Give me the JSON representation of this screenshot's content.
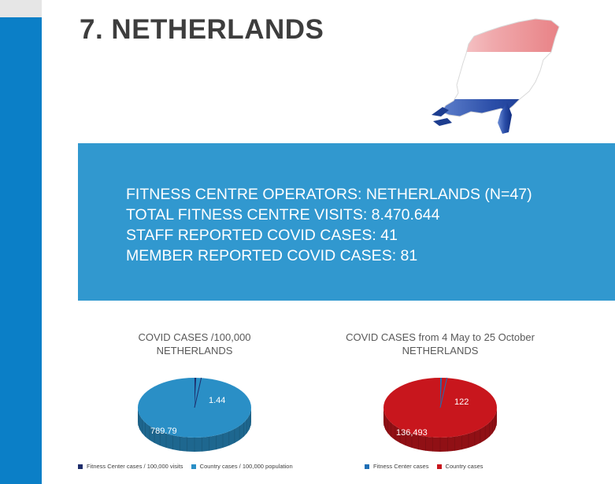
{
  "page": {
    "title": "7. NETHERLANDS"
  },
  "flag_map": {
    "icon": "netherlands-flag-map-icon",
    "colors": [
      "#ee9ca0",
      "#ffffff",
      "#1d3d8f"
    ]
  },
  "info": {
    "lines": [
      "FITNESS CENTRE OPERATORS: NETHERLANDS (N=47)",
      "TOTAL FITNESS CENTRE VISITS: 8.470.644",
      "STAFF REPORTED COVID CASES: 41",
      "MEMBER REPORTED COVID CASES: 81"
    ],
    "background": "#3198cf"
  },
  "chart_data": [
    {
      "type": "pie",
      "title_lines": [
        "COVID CASES /100,000",
        "NETHERLANDS"
      ],
      "labels": [
        "Fitness Center cases / 100,000 visits",
        "Country cases / 100,000 population"
      ],
      "values": [
        1.44,
        789.79
      ],
      "data_labels": [
        "1.44",
        "789.79"
      ],
      "colors": [
        "#1e2d6b",
        "#2a8fc6"
      ],
      "legend_position": "bottom"
    },
    {
      "type": "pie",
      "title_lines": [
        "COVID CASES from 4 May to 25 October",
        "NETHERLANDS"
      ],
      "labels": [
        "Fitness Center cases",
        "Country cases"
      ],
      "values": [
        122,
        136493
      ],
      "data_labels": [
        "122",
        "136,493"
      ],
      "colors": [
        "#1f6fb5",
        "#c8161d"
      ],
      "legend_position": "bottom"
    }
  ]
}
